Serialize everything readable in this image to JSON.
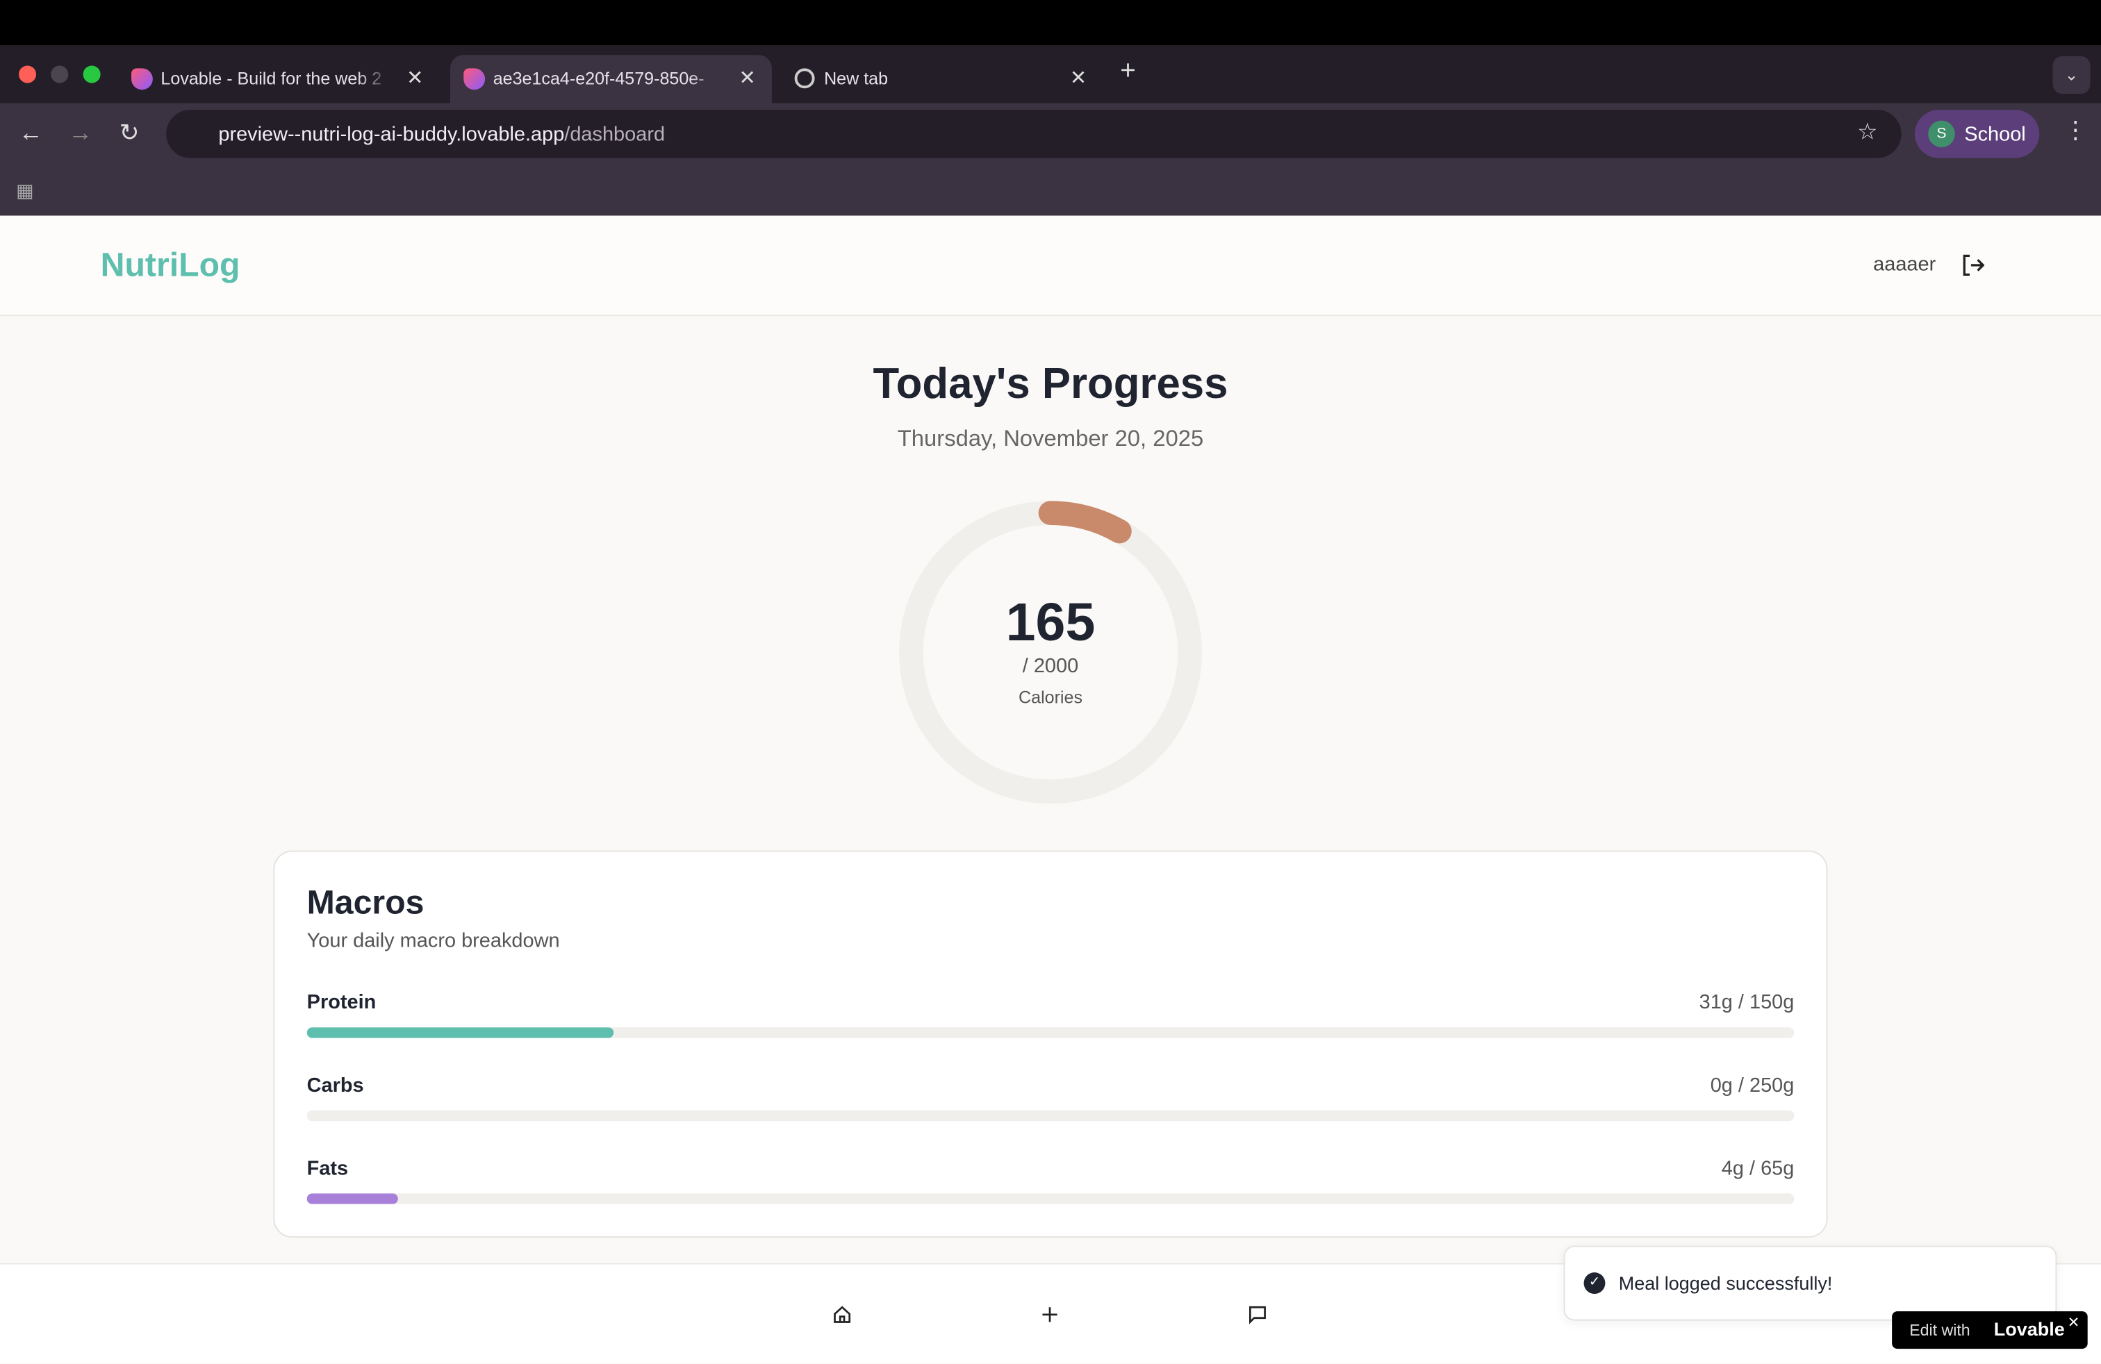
{
  "browser": {
    "tabs": [
      {
        "title": "Lovable - Build for the web 2"
      },
      {
        "title": "ae3e1ca4-e20f-4579-850e-"
      },
      {
        "title": "New tab"
      }
    ],
    "url_host": "preview--nutri-log-ai-buddy.lovable.app",
    "url_path": "/dashboard",
    "profile_initial": "S",
    "profile_name": "School"
  },
  "header": {
    "brand": "NutriLog",
    "user": "aaaaer"
  },
  "progress": {
    "title": "Today's Progress",
    "date": "Thursday, November 20, 2025",
    "calories": {
      "value": 165,
      "goal": 2000,
      "goal_label": "/ 2000",
      "unit": "Calories"
    }
  },
  "macros": {
    "title": "Macros",
    "subtitle": "Your daily macro breakdown",
    "items": [
      {
        "name": "Protein",
        "value": 31,
        "goal": 150,
        "label": "31g / 150g",
        "color": "#5fbfae"
      },
      {
        "name": "Carbs",
        "value": 0,
        "goal": 250,
        "label": "0g / 250g",
        "color": "#e8a46a"
      },
      {
        "name": "Fats",
        "value": 4,
        "goal": 65,
        "label": "4g / 65g",
        "color": "#a87fd9"
      }
    ]
  },
  "toast": {
    "message": "Meal logged successfully!"
  },
  "badge": {
    "prefix": "Edit with",
    "brand": "Lovable"
  }
}
